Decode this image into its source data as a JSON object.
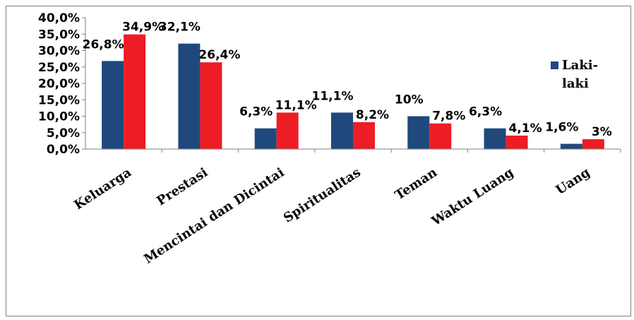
{
  "chart_data": {
    "type": "bar",
    "categories": [
      "Keluarga",
      "Prestasi",
      "Mencintai dan Dicintai",
      "Spiritualitas",
      "Teman",
      "Waktu Luang",
      "Uang"
    ],
    "series": [
      {
        "name": "Laki-laki",
        "color": "#1f497d",
        "values": [
          26.8,
          32.1,
          6.3,
          11.1,
          10,
          6.3,
          1.6
        ],
        "labels": [
          "26,8%",
          "32,1%",
          "6,3%",
          "11,1%",
          "10%",
          "6,3%",
          "1,6%"
        ]
      },
      {
        "color": "#ee1c25",
        "values": [
          34.9,
          26.4,
          11.1,
          8.2,
          7.8,
          4.1,
          3
        ],
        "labels": [
          "34,9%",
          "26,4%",
          "11,1%",
          "8,2%",
          "7,8%",
          "4,1%",
          "3%"
        ]
      }
    ],
    "ylim": [
      0,
      40
    ],
    "yticks": [
      "0,0%",
      "5,0%",
      "10,0%",
      "15,0%",
      "20,0%",
      "25,0%",
      "30,0%",
      "35,0%",
      "40,0%"
    ],
    "legend": {
      "placement": "right",
      "entries": [
        "Laki-",
        "laki"
      ]
    },
    "grid": false
  }
}
